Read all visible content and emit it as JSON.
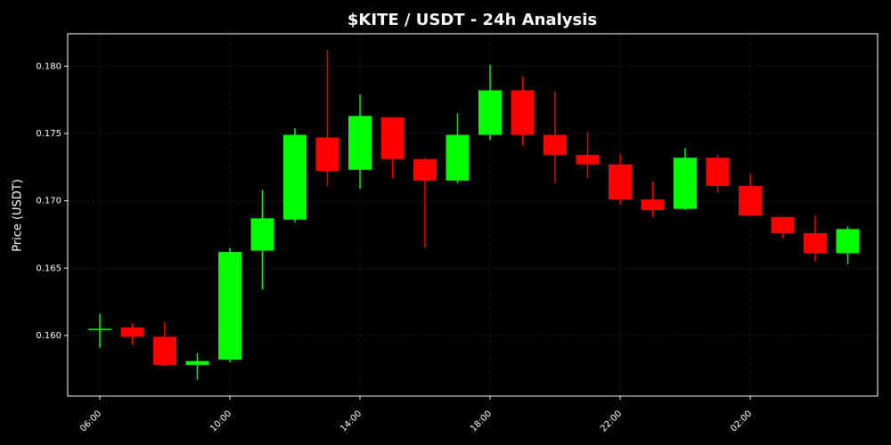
{
  "chart_data": {
    "type": "candlestick",
    "title": "$KITE / USDT - 24h Analysis",
    "y_label": "Price (USDT)",
    "categories": [
      "06:00",
      null,
      null,
      null,
      "10:00",
      null,
      null,
      null,
      "14:00",
      null,
      null,
      null,
      "18:00",
      null,
      null,
      null,
      "22:00",
      null,
      null,
      null,
      "02:00",
      null,
      null,
      null
    ],
    "open": [
      0.1605,
      0.1606,
      0.1599,
      0.1578,
      0.1582,
      0.1663,
      0.1686,
      0.1747,
      0.1723,
      0.1762,
      0.1731,
      0.1715,
      0.1749,
      0.1782,
      0.1749,
      0.1734,
      0.1727,
      0.1701,
      0.1694,
      0.1732,
      0.1711,
      0.1688,
      0.1676,
      0.1661
    ],
    "high": [
      0.1616,
      0.1609,
      0.161,
      0.1587,
      0.1665,
      0.1708,
      0.1754,
      0.1812,
      0.1779,
      0.1762,
      0.1732,
      0.1765,
      0.1801,
      0.1792,
      0.1781,
      0.1751,
      0.1735,
      0.1714,
      0.1739,
      0.1734,
      0.172,
      0.1688,
      0.1689,
      0.1681
    ],
    "low": [
      0.1591,
      0.1593,
      0.1577,
      0.1567,
      0.158,
      0.1634,
      0.1684,
      0.1711,
      0.1709,
      0.1717,
      0.1665,
      0.1713,
      0.1745,
      0.1741,
      0.1713,
      0.1717,
      0.1697,
      0.1688,
      0.1693,
      0.1706,
      0.1689,
      0.1672,
      0.1655,
      0.1653
    ],
    "close": [
      0.1605,
      0.1599,
      0.1578,
      0.1581,
      0.1662,
      0.1687,
      0.1749,
      0.1722,
      0.1763,
      0.1731,
      0.1715,
      0.1749,
      0.1782,
      0.1749,
      0.1734,
      0.1727,
      0.1701,
      0.1693,
      0.1732,
      0.1711,
      0.1689,
      0.1676,
      0.1661,
      0.1679
    ],
    "up_color": "#00ff00",
    "down_color": "#ff0000",
    "ylim": [
      0.1555,
      0.1824
    ],
    "yticks": [
      {
        "value": 0.16,
        "label": "0.160"
      },
      {
        "value": 0.165,
        "label": "0.165"
      },
      {
        "value": 0.17,
        "label": "0.170"
      },
      {
        "value": 0.175,
        "label": "0.175"
      },
      {
        "value": 0.18,
        "label": "0.180"
      }
    ],
    "grid": true
  }
}
